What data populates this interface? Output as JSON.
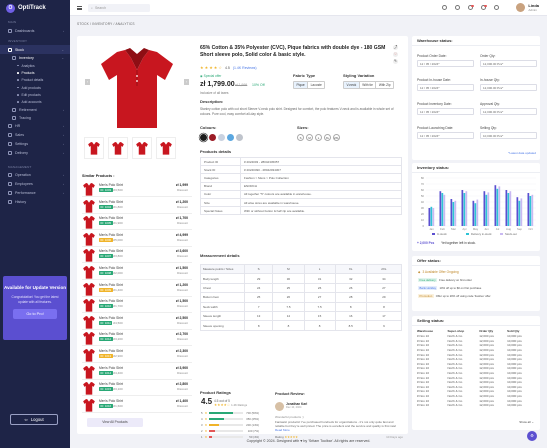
{
  "app": {
    "name": "OptiTrack",
    "logo_letter": "O"
  },
  "sidebar": {
    "sections": [
      "MAIN",
      "INVENTORY",
      "MANAGEMENT"
    ],
    "items": [
      {
        "label": "Dashboards",
        "icon": "grid-icon"
      },
      {
        "label": "Stock",
        "icon": "box-icon"
      },
      {
        "label": "Inventory",
        "icon": "list-icon"
      },
      {
        "label": "Analytics"
      },
      {
        "label": "Products"
      },
      {
        "label": "Product details"
      },
      {
        "label": "Add products"
      },
      {
        "label": "Edit products"
      },
      {
        "label": "Add accounts"
      },
      {
        "label": "Retirement",
        "icon": "archive-icon"
      },
      {
        "label": "Tracing",
        "icon": "route-icon"
      },
      {
        "label": "HR",
        "icon": "users-icon"
      },
      {
        "label": "Sales",
        "icon": "cart-icon"
      },
      {
        "label": "Settings",
        "icon": "gear-icon"
      },
      {
        "label": "Delivery",
        "icon": "truck-icon"
      },
      {
        "label": "Operation",
        "icon": "cog-icon"
      },
      {
        "label": "Employees",
        "icon": "person-icon"
      },
      {
        "label": "Performance",
        "icon": "chart-icon"
      },
      {
        "label": "History",
        "icon": "clock-icon"
      }
    ],
    "promo": {
      "title": "Available for Update Version",
      "text": "Congratulation! You get the latest update with all features.",
      "button": "Go to Pro!"
    },
    "logout": "Logout"
  },
  "header": {
    "search_placeholder": "Search",
    "user_name": "Linda",
    "user_role": "Admin"
  },
  "breadcrumb": "STOCK  /  INVENTORY  /  ANALYTICS",
  "product": {
    "title": "65% Cotton & 35% Polyester (CVC), Pique fabrics with double dye - 180 GSM Short sleeve polo, Solid color & basic style.",
    "rating_value": "4.5",
    "rating_count": "(1.4K Reviews)",
    "stock_status": "Special offer",
    "price": "zł 1,799.00",
    "old_price": "zł 1,999",
    "discount": "10% Off",
    "incl": "Inclusive of all taxes",
    "fabric_label": "Fabric Type",
    "fabric_options": [
      "Pique",
      "Lacoste"
    ],
    "styling_label": "Styling Variation",
    "styling_options": [
      "V-neck",
      "With tie",
      "With Zip"
    ],
    "desc_label": "Description:",
    "description": "Stanley cotton polo with cut short Sleeve V-neck polo shirt. Designed for comfort, the polo features V-neck and is available in whole set of colours. Pure cool, easy comfort all-day style.",
    "colours_label": "Colours:",
    "colours": [
      "#1c1c1c",
      "#9b1b25",
      "#c9d2e0",
      "#5aa7e0",
      "#bfc4cc"
    ],
    "sizes_label": "Sizes:",
    "sizes": [
      "S",
      "M",
      "L",
      "XL",
      "2XL"
    ],
    "details_label": "Products details",
    "details": [
      [
        "Product ID",
        "# 2024003 - 28042345057"
      ],
      [
        "Stock ID",
        "# 20240490 - 28042034307"
      ],
      [
        "Categories",
        "Fashion > Mens > Polo Collection"
      ],
      [
        "Brand",
        "ENORCH"
      ],
      [
        "Color",
        "All together \"5\" colours are available in warehouse."
      ],
      [
        "Size",
        "All wise sizes are available in warehouse."
      ],
      [
        "Special Notes",
        "With or without button & half zip are available."
      ]
    ],
    "measure_label": "Measurement details",
    "measure_head": [
      "Measure points / Sizes",
      "S",
      "M",
      "L",
      "XL",
      "2XL"
    ],
    "measure_rows": [
      [
        "Body length",
        "29",
        "30",
        "31",
        "32",
        "34"
      ],
      [
        "Chest",
        "24",
        "25",
        "26",
        "26",
        "27"
      ],
      [
        "Bottom hem",
        "25",
        "26",
        "27",
        "28",
        "29"
      ],
      [
        "Neck width",
        "7",
        "7.5",
        "7.5",
        "8",
        "8"
      ],
      [
        "Sleeve length",
        "13",
        "14",
        "15",
        "16",
        "17"
      ],
      [
        "Sleeve opening",
        "8",
        "8",
        "8",
        "8.5",
        "9"
      ]
    ],
    "ratings_label": "Product Ratings",
    "rating_big": "4.5",
    "rating_of": "4.5 out of 5",
    "rating_total": "1.4K Ratings",
    "rating_rows": [
      {
        "star": "5",
        "count": "700 (50%)",
        "pct": 0.7,
        "color": "#2aa876"
      },
      {
        "star": "4",
        "count": "350 (25%)",
        "pct": 0.45,
        "color": "#2aa876"
      },
      {
        "star": "3",
        "count": "200 (14%)",
        "pct": 0.3,
        "color": "#f0b429"
      },
      {
        "star": "2",
        "count": "100 (7%)",
        "pct": 0.18,
        "color": "#e35757"
      },
      {
        "star": "1",
        "count": "50 (4%)",
        "pct": 0.1,
        "color": "#e35757"
      }
    ],
    "review_label": "Product Review:",
    "reviewer": "Jonathan Karl",
    "review_date": "Dec 10, 2024",
    "review_product": "Wonderful products :)",
    "review_text": "Fantastic products! I've purchased hundreds for organizations - it's not only quite fast and reliable but they're well priced. The price is excellent and the service and quality is first rate!",
    "review_more": "Read More",
    "review_foot": "Rating",
    "review_ago": "10 Days ago",
    "similar_label": "Similar Products :",
    "similar": [
      {
        "name": "Men's Polo Shirt",
        "chip": "ID: 1003",
        "old": "zł3,500",
        "price": "zł 1,999",
        "sub": "Discount",
        "chipcolor": "#2aa876"
      },
      {
        "name": "Men's Polo Shirt",
        "chip": "ID: 1004",
        "old": "zł1,800",
        "price": "zł 1,200",
        "sub": "Discount",
        "chipcolor": "#2aa876"
      },
      {
        "name": "Men's Polo Shirt",
        "chip": "ID: 1005",
        "old": "zł1,900",
        "price": "zł 1,700",
        "sub": "Discount",
        "chipcolor": "#2aa876"
      },
      {
        "name": "Men's Polo Shirt",
        "chip": "ID: 1006",
        "old": "zł5,000",
        "price": "zł 4,999",
        "sub": "Discount",
        "chipcolor": "#f0b429"
      },
      {
        "name": "Men's Polo Shirt",
        "chip": "ID: 1007",
        "old": "zł3,800",
        "price": "zł 3,600",
        "sub": "Discount",
        "chipcolor": "#2aa876"
      },
      {
        "name": "Men's Polo Shirt",
        "chip": "ID: 1008",
        "old": "zł2,000",
        "price": "zł 1,500",
        "sub": "Discount",
        "chipcolor": "#2aa876"
      },
      {
        "name": "Men's Polo Shirt",
        "chip": "ID: 1009",
        "old": "zł1,400",
        "price": "zł 1,200",
        "sub": "Discount",
        "chipcolor": "#f0b429"
      },
      {
        "name": "Men's Polo Shirt",
        "chip": "ID: 1010",
        "old": "zł1,700",
        "price": "zł 1,500",
        "sub": "Discount",
        "chipcolor": "#2aa876"
      },
      {
        "name": "Men's Polo Shirt",
        "chip": "ID: 1011",
        "old": "zł4,500",
        "price": "zł 2,500",
        "sub": "Discount",
        "chipcolor": "#2aa876"
      },
      {
        "name": "Men's Polo Shirt",
        "chip": "ID: 1012",
        "old": "zł3,200",
        "price": "zł 2,700",
        "sub": "Discount",
        "chipcolor": "#2aa876"
      },
      {
        "name": "Men's Polo Shirt",
        "chip": "ID: 1013",
        "old": "zł2,900",
        "price": "zł 2,300",
        "sub": "Discount",
        "chipcolor": "#f0b429"
      },
      {
        "name": "Men's Polo Shirt",
        "chip": "ID: 1014",
        "old": "zł4,400",
        "price": "zł 3,900",
        "sub": "Discount",
        "chipcolor": "#2aa876"
      },
      {
        "name": "Men's Polo Shirt",
        "chip": "ID: 1015",
        "old": "zł3,100",
        "price": "zł 2,800",
        "sub": "Discount",
        "chipcolor": "#2aa876"
      },
      {
        "name": "Men's Polo Shirt",
        "chip": "ID: 1016",
        "old": "zł1,600",
        "price": "zł 1,400",
        "sub": "Discount",
        "chipcolor": "#2aa876"
      }
    ],
    "view_all": "View All Products",
    "shirt_color": "#c8161f"
  },
  "warehouse": {
    "title": "Warehouse status:",
    "fields": [
      {
        "label": "Product Order Date:",
        "value": "12 / 05 / 2024*"
      },
      {
        "label": "Order Qty:",
        "value": "12,000.00 Pcs*"
      },
      {
        "label": "Product In-house Date:",
        "value": "12 / 05 / 2024*"
      },
      {
        "label": "In-house Qty:",
        "value": "12,000.00 Pcs*"
      },
      {
        "label": "Product Inventory Date:",
        "value": "12 / 05 / 2024*"
      },
      {
        "label": "Approval Qty:",
        "value": "12,000.00 Pcs*"
      },
      {
        "label": "Product Launching Date:",
        "value": "12 / 05 / 2024*"
      },
      {
        "label": "Selling Qty:",
        "value": "10,000.00 Pcs*"
      }
    ],
    "latest": "*Latest data updated"
  },
  "inventory": {
    "title": "Inventory status:",
    "legend": [
      "In stock",
      "Delivery in-stock",
      "Stock-out"
    ],
    "colors": [
      "#5b4fd0",
      "#2ec4d6",
      "#c9b9f2"
    ],
    "total": "+ 2,000 Pcs",
    "note": "Yet together left in stock."
  },
  "chart_data": {
    "type": "bar",
    "categories": [
      "Jan",
      "Feb",
      "Mar",
      "Apr",
      "May",
      "Jun",
      "Jul",
      "Aug",
      "Sep",
      "Oct"
    ],
    "series": [
      {
        "name": "In stock",
        "values": [
          30,
          58,
          45,
          60,
          42,
          58,
          68,
          60,
          48,
          55
        ]
      },
      {
        "name": "Delivery in-stock",
        "values": [
          32,
          55,
          40,
          55,
          38,
          52,
          62,
          55,
          42,
          50
        ]
      },
      {
        "name": "Stock-out",
        "values": [
          30,
          52,
          42,
          58,
          44,
          56,
          66,
          58,
          46,
          52
        ]
      }
    ],
    "yticks": [
      "0",
      "10",
      "20",
      "30",
      "40",
      "50",
      "60",
      "70",
      "80"
    ],
    "ylim": [
      0,
      80
    ]
  },
  "offer": {
    "title": "Offer status:",
    "head": "3 Available Offer Ongoing",
    "items": [
      {
        "tag": "Free delivery",
        "text": "Free delivery on first order",
        "color": "#2aa876",
        "bg": "#e2f5ee"
      },
      {
        "tag": "Bank Holiday",
        "text": "10% off up to $0 on first purchase",
        "color": "#4a78e6",
        "bg": "#e5edfc"
      },
      {
        "tag": "Promotion",
        "text": "Offer up to 20% off using code 'Festive' offer",
        "color": "#c0882a",
        "bg": "#fbf1dd"
      }
    ]
  },
  "selling": {
    "title": "Selling status:",
    "head": [
      "Warehouse",
      "Super-shop",
      "Order Qty",
      "Sold Qty"
    ],
    "rows": [
      [
        "# Nov 10",
        "North & Co",
        "12,000 pcs",
        "10,000 pcs"
      ],
      [
        "# Nov 10",
        "North & Co",
        "12,000 pcs",
        "10,000 pcs"
      ],
      [
        "# Nov 10",
        "North & Co",
        "12,000 pcs",
        "10,000 pcs"
      ],
      [
        "# Nov 10",
        "North & Co",
        "12,000 pcs",
        "10,000 pcs"
      ],
      [
        "# Nov 10",
        "North & Co",
        "12,000 pcs",
        "10,000 pcs"
      ],
      [
        "# Nov 10",
        "North & Co",
        "12,000 pcs",
        "10,000 pcs"
      ],
      [
        "# Nov 10",
        "North & Co",
        "12,000 pcs",
        "10,000 pcs"
      ],
      [
        "# Nov 10",
        "North & Co",
        "12,000 pcs",
        "10,000 pcs"
      ],
      [
        "# Nov 10",
        "North & Co",
        "12,000 pcs",
        "10,000 pcs"
      ],
      [
        "# Nov 10",
        "North & Co",
        "12,000 pcs",
        "10,000 pcs"
      ],
      [
        "# Nov 10",
        "North & Co",
        "12,000 pcs",
        "10,000 pcs"
      ],
      [
        "# Nov 10",
        "North & Co",
        "12,000 pcs",
        "10,000 pcs"
      ],
      [
        "# Nov 10",
        "North & Co",
        "12,000 pcs",
        "10,000 pcs"
      ],
      [
        "# Nov 10",
        "North & Co",
        "12,000 pcs",
        "10,000 pcs"
      ],
      [
        "# Nov 10",
        "North & Co",
        "12,000 pcs",
        "10,000 pcs"
      ],
      [
        "# Nov 10",
        "North & Co",
        "12,000 pcs",
        "10,000 pcs"
      ]
    ],
    "show_all": "Show all"
  },
  "footer": "Copyright © 2024. Designed with ♥ by 'Sritam Toolbar'. All rights are reserved."
}
